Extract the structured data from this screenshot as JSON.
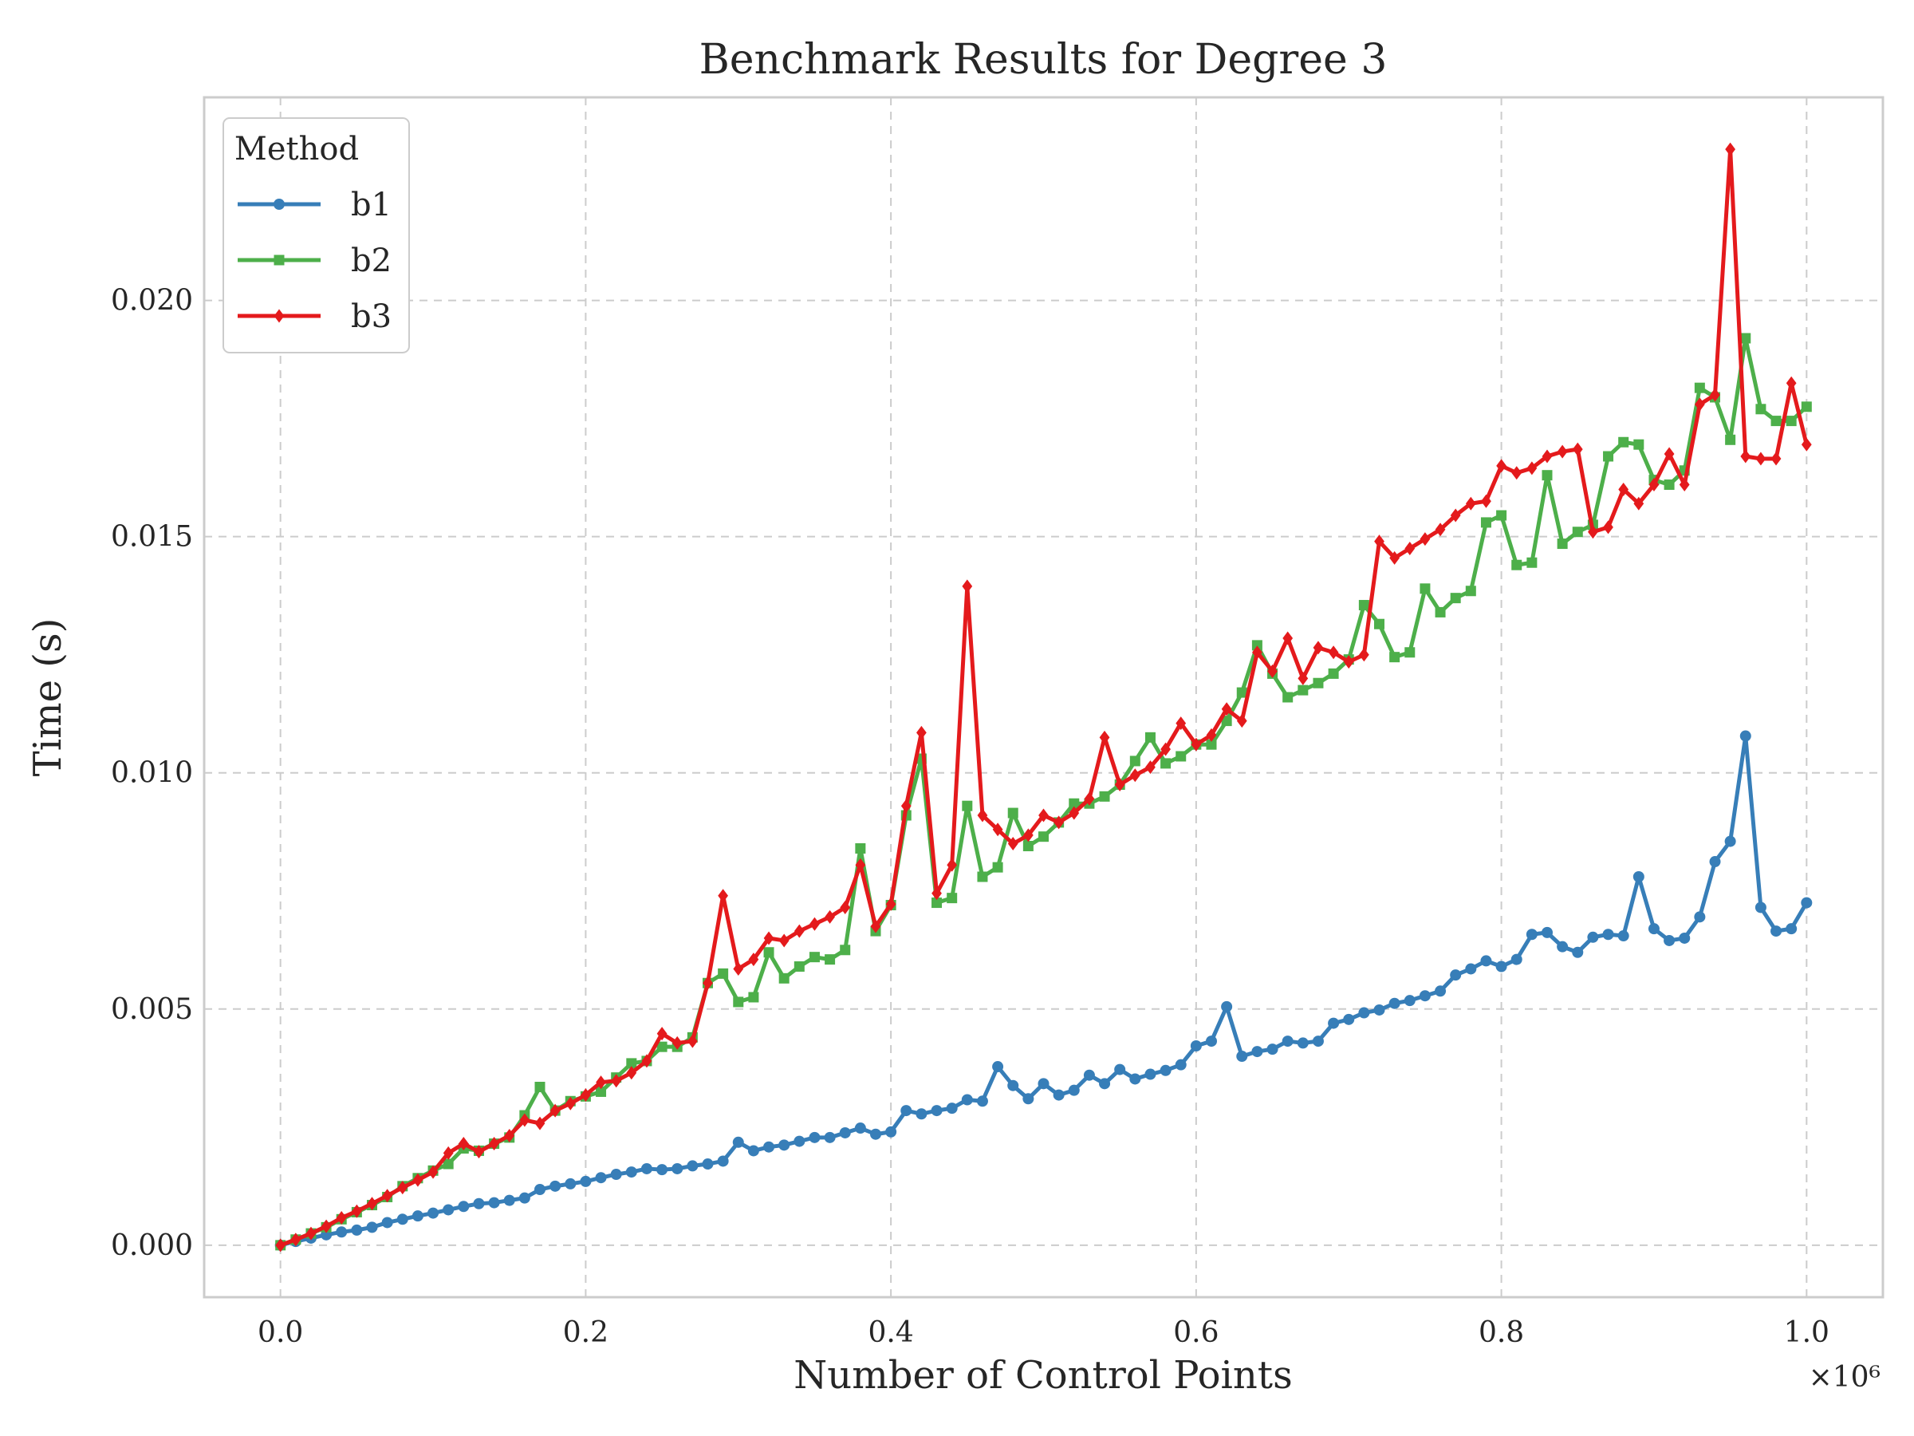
{
  "chart_data": {
    "type": "line",
    "title": "Benchmark Results for Degree 3",
    "xlabel": "Number of Control Points",
    "ylabel": "Time (s)",
    "x_scale_label": "×10⁶",
    "xlim": [
      -0.05,
      1.05
    ],
    "ylim": [
      -0.0011,
      0.0243
    ],
    "xticks": [
      0.0,
      0.2,
      0.4,
      0.6,
      0.8,
      1.0
    ],
    "xtick_labels": [
      "0.0",
      "0.2",
      "0.4",
      "0.6",
      "0.8",
      "1.0"
    ],
    "yticks": [
      0.0,
      0.005,
      0.01,
      0.015,
      0.02
    ],
    "ytick_labels": [
      "0.000",
      "0.005",
      "0.010",
      "0.015",
      "0.020"
    ],
    "grid": true,
    "legend": {
      "title": "Method",
      "position": "top-left"
    },
    "x": [
      0.0,
      0.01,
      0.02,
      0.03,
      0.04,
      0.05,
      0.06,
      0.07,
      0.08,
      0.09,
      0.1,
      0.11,
      0.12,
      0.13,
      0.14,
      0.15,
      0.16,
      0.17,
      0.18,
      0.19,
      0.2,
      0.21,
      0.22,
      0.23,
      0.24,
      0.25,
      0.26,
      0.27,
      0.28,
      0.29,
      0.3,
      0.31,
      0.32,
      0.33,
      0.34,
      0.35,
      0.36,
      0.37,
      0.38,
      0.39,
      0.4,
      0.41,
      0.42,
      0.43,
      0.44,
      0.45,
      0.46,
      0.47,
      0.48,
      0.49,
      0.5,
      0.51,
      0.52,
      0.53,
      0.54,
      0.55,
      0.56,
      0.57,
      0.58,
      0.59,
      0.6,
      0.61,
      0.62,
      0.63,
      0.64,
      0.65,
      0.66,
      0.67,
      0.68,
      0.69,
      0.7,
      0.71,
      0.72,
      0.73,
      0.74,
      0.75,
      0.76,
      0.77,
      0.78,
      0.79,
      0.8,
      0.81,
      0.82,
      0.83,
      0.84,
      0.85,
      0.86,
      0.87,
      0.88,
      0.89,
      0.9,
      0.91,
      0.92,
      0.93,
      0.94,
      0.95,
      0.96,
      0.97,
      0.98,
      0.99,
      1.0
    ],
    "series": [
      {
        "name": "b1",
        "color": "#377eb8",
        "marker": "circle",
        "values": [
          0.0,
          8e-05,
          0.00015,
          0.00022,
          0.00028,
          0.00032,
          0.00038,
          0.00048,
          0.00055,
          0.00062,
          0.00068,
          0.00075,
          0.00082,
          0.00088,
          0.0009,
          0.00095,
          0.001,
          0.00118,
          0.00125,
          0.0013,
          0.00135,
          0.00143,
          0.0015,
          0.00155,
          0.00162,
          0.0016,
          0.00162,
          0.00168,
          0.00172,
          0.00178,
          0.00218,
          0.002,
          0.00208,
          0.00212,
          0.0022,
          0.00228,
          0.00228,
          0.00238,
          0.00248,
          0.00235,
          0.0024,
          0.00285,
          0.00278,
          0.00285,
          0.0029,
          0.00308,
          0.00305,
          0.00378,
          0.00338,
          0.0031,
          0.00342,
          0.00318,
          0.00328,
          0.0036,
          0.00342,
          0.00372,
          0.00352,
          0.00362,
          0.0037,
          0.00382,
          0.00422,
          0.00432,
          0.00505,
          0.004,
          0.0041,
          0.00415,
          0.00432,
          0.00428,
          0.00432,
          0.0047,
          0.00478,
          0.00492,
          0.00498,
          0.00512,
          0.00518,
          0.00528,
          0.00538,
          0.00572,
          0.00585,
          0.00602,
          0.0059,
          0.00605,
          0.00658,
          0.00662,
          0.00632,
          0.0062,
          0.00652,
          0.00658,
          0.00655,
          0.0078,
          0.0067,
          0.00645,
          0.0065,
          0.00695,
          0.00812,
          0.00855,
          0.01078,
          0.00715,
          0.00665,
          0.0067,
          0.00725
        ]
      },
      {
        "name": "b2",
        "color": "#4daf4a",
        "marker": "square",
        "values": [
          0.0,
          0.00012,
          0.00025,
          0.00038,
          0.00055,
          0.0007,
          0.00085,
          0.00102,
          0.00125,
          0.00142,
          0.00158,
          0.00172,
          0.00205,
          0.002,
          0.00215,
          0.00228,
          0.00275,
          0.00335,
          0.00285,
          0.00305,
          0.00315,
          0.00325,
          0.00355,
          0.00385,
          0.0039,
          0.0042,
          0.0042,
          0.0044,
          0.00555,
          0.00575,
          0.00515,
          0.00525,
          0.0062,
          0.00565,
          0.0059,
          0.0061,
          0.00605,
          0.00625,
          0.0084,
          0.00665,
          0.0072,
          0.0091,
          0.0103,
          0.00725,
          0.00735,
          0.0093,
          0.0078,
          0.008,
          0.00915,
          0.00845,
          0.00865,
          0.00895,
          0.00935,
          0.00935,
          0.0095,
          0.00975,
          0.01025,
          0.01075,
          0.0102,
          0.01035,
          0.0106,
          0.0106,
          0.0111,
          0.0117,
          0.0127,
          0.0121,
          0.0116,
          0.01175,
          0.0119,
          0.0121,
          0.0124,
          0.01355,
          0.01315,
          0.01245,
          0.01255,
          0.0139,
          0.0134,
          0.0137,
          0.01385,
          0.0153,
          0.01545,
          0.0144,
          0.01445,
          0.0163,
          0.01485,
          0.0151,
          0.01525,
          0.0167,
          0.017,
          0.01695,
          0.0162,
          0.0161,
          0.0164,
          0.01815,
          0.01795,
          0.01705,
          0.0192,
          0.0177,
          0.01745,
          0.01745,
          0.01775
        ]
      },
      {
        "name": "b3",
        "color": "#e41a1c",
        "marker": "diamond",
        "values": [
          0.0,
          0.00012,
          0.00025,
          0.0004,
          0.00058,
          0.00072,
          0.00088,
          0.00105,
          0.00122,
          0.00138,
          0.00155,
          0.00195,
          0.00215,
          0.00198,
          0.00215,
          0.00232,
          0.00265,
          0.00258,
          0.00285,
          0.003,
          0.00318,
          0.00345,
          0.00348,
          0.00365,
          0.0039,
          0.00448,
          0.00428,
          0.00432,
          0.00555,
          0.0074,
          0.00585,
          0.00605,
          0.0065,
          0.00645,
          0.00665,
          0.0068,
          0.00695,
          0.00715,
          0.00805,
          0.00675,
          0.00722,
          0.0093,
          0.01085,
          0.00745,
          0.00805,
          0.01395,
          0.0091,
          0.0088,
          0.0085,
          0.00868,
          0.0091,
          0.00895,
          0.00915,
          0.00945,
          0.01075,
          0.00975,
          0.00995,
          0.01012,
          0.0105,
          0.01105,
          0.0106,
          0.0108,
          0.01135,
          0.0111,
          0.01255,
          0.01215,
          0.01285,
          0.012,
          0.01265,
          0.01255,
          0.01235,
          0.0125,
          0.0149,
          0.01455,
          0.01475,
          0.01495,
          0.01515,
          0.01545,
          0.0157,
          0.01575,
          0.0165,
          0.01635,
          0.01645,
          0.0167,
          0.0168,
          0.01685,
          0.0151,
          0.0152,
          0.016,
          0.0157,
          0.0161,
          0.01675,
          0.0161,
          0.0178,
          0.018,
          0.0232,
          0.0167,
          0.01665,
          0.01665,
          0.01825,
          0.01695
        ]
      }
    ]
  }
}
